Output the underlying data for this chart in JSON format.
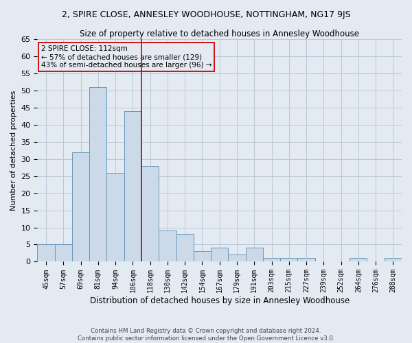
{
  "title": "2, SPIRE CLOSE, ANNESLEY WOODHOUSE, NOTTINGHAM, NG17 9JS",
  "subtitle": "Size of property relative to detached houses in Annesley Woodhouse",
  "xlabel": "Distribution of detached houses by size in Annesley Woodhouse",
  "ylabel": "Number of detached properties",
  "footer_line1": "Contains HM Land Registry data © Crown copyright and database right 2024.",
  "footer_line2": "Contains public sector information licensed under the Open Government Licence v3.0.",
  "categories": [
    "45sqm",
    "57sqm",
    "69sqm",
    "81sqm",
    "94sqm",
    "106sqm",
    "118sqm",
    "130sqm",
    "142sqm",
    "154sqm",
    "167sqm",
    "179sqm",
    "191sqm",
    "203sqm",
    "215sqm",
    "227sqm",
    "239sqm",
    "252sqm",
    "264sqm",
    "276sqm",
    "288sqm"
  ],
  "values": [
    5,
    5,
    32,
    51,
    26,
    44,
    28,
    9,
    8,
    3,
    4,
    2,
    4,
    1,
    1,
    1,
    0,
    0,
    1,
    0,
    1
  ],
  "bar_color": "#ccd9e8",
  "bar_edge_color": "#6699bb",
  "grid_color": "#b8c8d8",
  "background_color": "#e4eaf2",
  "annotation_text": "2 SPIRE CLOSE: 112sqm\n← 57% of detached houses are smaller (129)\n43% of semi-detached houses are larger (96) →",
  "annotation_box_edge": "#cc0000",
  "vline_x": 5.5,
  "vline_color": "#cc0000",
  "ylim": [
    0,
    65
  ],
  "yticks": [
    0,
    5,
    10,
    15,
    20,
    25,
    30,
    35,
    40,
    45,
    50,
    55,
    60,
    65
  ]
}
